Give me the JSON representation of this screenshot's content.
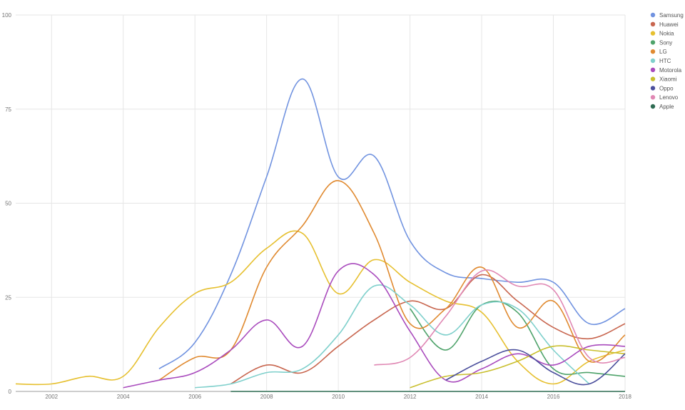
{
  "chart_data": {
    "type": "line",
    "title": "",
    "xlabel": "",
    "ylabel": "",
    "xlim": [
      2001,
      2018
    ],
    "ylim": [
      0,
      100
    ],
    "x_ticks": [
      "2002",
      "2004",
      "2006",
      "2008",
      "2010",
      "2012",
      "2014",
      "2016",
      "2018"
    ],
    "y_ticks": [
      "0",
      "25",
      "50",
      "75",
      "100"
    ],
    "grid": true,
    "legend_position": "right",
    "series": [
      {
        "name": "Samsung",
        "color": "#7193e0",
        "points": [
          [
            2005,
            6
          ],
          [
            2006,
            13
          ],
          [
            2007,
            31
          ],
          [
            2008,
            57
          ],
          [
            2009,
            83
          ],
          [
            2010,
            57
          ],
          [
            2011,
            62.5
          ],
          [
            2012,
            40
          ],
          [
            2013,
            31.5
          ],
          [
            2014,
            30
          ],
          [
            2015,
            29
          ],
          [
            2016,
            29
          ],
          [
            2017,
            18
          ],
          [
            2018,
            22
          ]
        ]
      },
      {
        "name": "Huawei",
        "color": "#c8664f",
        "points": [
          [
            2007,
            2
          ],
          [
            2008,
            7
          ],
          [
            2009,
            5
          ],
          [
            2010,
            12
          ],
          [
            2011,
            19
          ],
          [
            2012,
            24
          ],
          [
            2013,
            22
          ],
          [
            2014,
            31
          ],
          [
            2015,
            24
          ],
          [
            2016,
            17
          ],
          [
            2017,
            14
          ],
          [
            2018,
            18
          ]
        ]
      },
      {
        "name": "Nokia",
        "color": "#e6c030",
        "points": [
          [
            2001,
            2
          ],
          [
            2002,
            2
          ],
          [
            2003,
            4
          ],
          [
            2004,
            4
          ],
          [
            2005,
            17
          ],
          [
            2006,
            26
          ],
          [
            2007,
            29
          ],
          [
            2008,
            38
          ],
          [
            2009,
            42
          ],
          [
            2010,
            26
          ],
          [
            2011,
            35
          ],
          [
            2012,
            29
          ],
          [
            2013,
            24
          ],
          [
            2014,
            21
          ],
          [
            2015,
            8
          ],
          [
            2016,
            2
          ],
          [
            2017,
            8
          ],
          [
            2018,
            11
          ]
        ]
      },
      {
        "name": "Sony",
        "color": "#4fa36b",
        "points": [
          [
            2012,
            22
          ],
          [
            2013,
            11
          ],
          [
            2014,
            23
          ],
          [
            2015,
            21
          ],
          [
            2016,
            6
          ],
          [
            2017,
            5
          ],
          [
            2018,
            4
          ]
        ]
      },
      {
        "name": "LG",
        "color": "#e08a30",
        "points": [
          [
            2005,
            3
          ],
          [
            2006,
            9
          ],
          [
            2007,
            11
          ],
          [
            2008,
            33
          ],
          [
            2009,
            44
          ],
          [
            2010,
            56
          ],
          [
            2011,
            42
          ],
          [
            2012,
            18
          ],
          [
            2013,
            22
          ],
          [
            2014,
            33
          ],
          [
            2015,
            17
          ],
          [
            2016,
            24
          ],
          [
            2017,
            8
          ],
          [
            2018,
            15
          ]
        ]
      },
      {
        "name": "HTC",
        "color": "#7fd0cc",
        "points": [
          [
            2006,
            1
          ],
          [
            2007,
            2
          ],
          [
            2008,
            5
          ],
          [
            2009,
            6
          ],
          [
            2010,
            15
          ],
          [
            2011,
            28
          ],
          [
            2012,
            23
          ],
          [
            2013,
            15
          ],
          [
            2014,
            23
          ],
          [
            2015,
            22
          ],
          [
            2016,
            11
          ],
          [
            2017,
            2
          ]
        ]
      },
      {
        "name": "Motorola",
        "color": "#a94bbd",
        "points": [
          [
            2004,
            1
          ],
          [
            2005,
            3
          ],
          [
            2006,
            5
          ],
          [
            2007,
            11
          ],
          [
            2008,
            19
          ],
          [
            2009,
            12
          ],
          [
            2010,
            32
          ],
          [
            2011,
            31
          ],
          [
            2012,
            16
          ],
          [
            2013,
            3
          ],
          [
            2014,
            6
          ],
          [
            2015,
            10
          ],
          [
            2016,
            7
          ],
          [
            2017,
            12
          ],
          [
            2018,
            12
          ]
        ]
      },
      {
        "name": "Xiaomi",
        "color": "#c9bf2e",
        "points": [
          [
            2012,
            1
          ],
          [
            2013,
            4
          ],
          [
            2014,
            5
          ],
          [
            2015,
            8
          ],
          [
            2016,
            12
          ],
          [
            2017,
            11
          ],
          [
            2018,
            10
          ]
        ]
      },
      {
        "name": "Oppo",
        "color": "#4b4f9c",
        "points": [
          [
            2013,
            3
          ],
          [
            2014,
            8
          ],
          [
            2015,
            11
          ],
          [
            2016,
            5
          ],
          [
            2017,
            2
          ],
          [
            2018,
            10
          ]
        ]
      },
      {
        "name": "Lenovo",
        "color": "#e088b4",
        "points": [
          [
            2011,
            7
          ],
          [
            2012,
            9
          ],
          [
            2013,
            20
          ],
          [
            2014,
            32
          ],
          [
            2015,
            28
          ],
          [
            2016,
            27
          ],
          [
            2017,
            9
          ],
          [
            2018,
            9
          ]
        ]
      },
      {
        "name": "Apple",
        "color": "#2e6b52",
        "points": [
          [
            2007,
            0
          ],
          [
            2018,
            0
          ]
        ]
      }
    ]
  }
}
